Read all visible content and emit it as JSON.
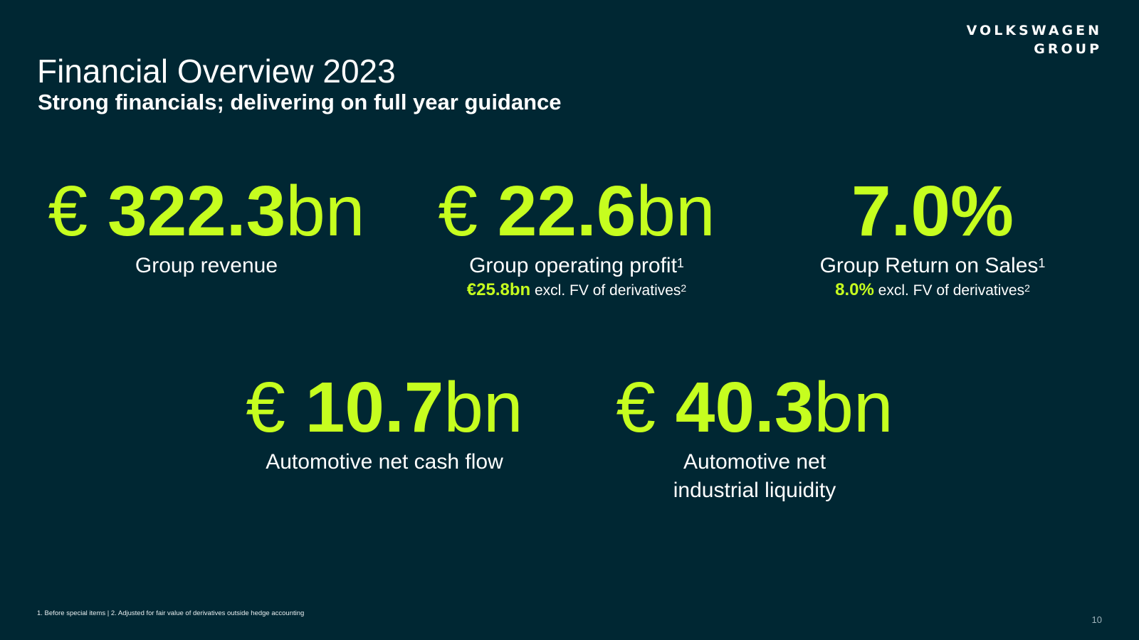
{
  "brand": {
    "line1": "VOLKSWAGEN",
    "line2": "GROUP"
  },
  "header": {
    "title": "Financial Overview 2023",
    "subtitle": "Strong financials; delivering on full year guidance"
  },
  "kpis": [
    {
      "currency": "€ ",
      "number": "322.3",
      "unit": "bn",
      "label": "Group revenue"
    },
    {
      "currency": "€ ",
      "number": "22.6",
      "unit": "bn",
      "label": "Group operating profit",
      "label_sup": "1",
      "sub_value": "€25.8bn",
      "sub_text": " excl. FV of derivatives",
      "sub_sup": "2"
    },
    {
      "currency": "",
      "number": "7.0%",
      "unit": "",
      "label": "Group Return on Sales",
      "label_sup": "1",
      "sub_value": "8.0%",
      "sub_text": " excl. FV of derivatives",
      "sub_sup": "2"
    },
    {
      "currency": "€ ",
      "number": "10.7",
      "unit": "bn",
      "label": "Automotive net cash flow"
    },
    {
      "currency": "€ ",
      "number": "40.3",
      "unit": "bn",
      "label_line1": "Automotive net",
      "label_line2": "industrial liquidity"
    }
  ],
  "footer": {
    "footnote": "1. Before special items | 2. Adjusted for fair value of derivatives outside hedge accounting",
    "page_number": "10"
  },
  "colors": {
    "background": "#002733",
    "accent": "#c6fe1f",
    "text": "#ffffff"
  }
}
